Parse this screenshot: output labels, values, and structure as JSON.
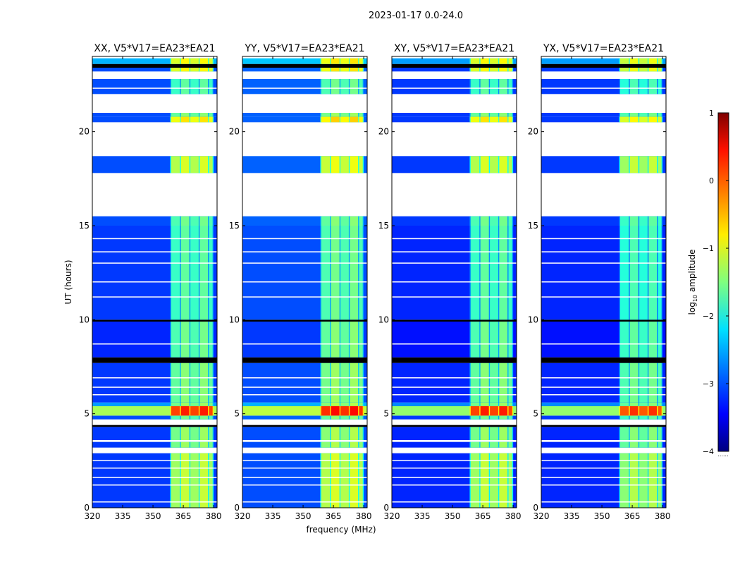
{
  "chart_data": {
    "type": "heatmap",
    "suptitle": "2023-01-17 0.0-24.0",
    "xlabel": "frequency (MHz)",
    "ylabel": "UT (hours)",
    "xlim": [
      320,
      381.7
    ],
    "ylim": [
      0,
      24
    ],
    "xticks": [
      "320",
      "335",
      "350",
      "365",
      "380"
    ],
    "xtick_values": [
      320,
      335,
      350,
      365,
      380
    ],
    "yticks": [
      "0",
      "5",
      "10",
      "15",
      "20"
    ],
    "ytick_values": [
      0,
      5,
      10,
      15,
      20
    ],
    "panels": [
      {
        "title": "XX, V5*V17=EA23*EA21",
        "bg_offset": 0.0,
        "hi_offset": 0.0
      },
      {
        "title": "YY, V5*V17=EA23*EA21",
        "bg_offset": 0.1,
        "hi_offset": 0.1
      },
      {
        "title": "XY, V5*V17=EA23*EA21",
        "bg_offset": -0.1,
        "hi_offset": 0.0
      },
      {
        "title": "YX, V5*V17=EA23*EA21",
        "bg_offset": -0.1,
        "hi_offset": -0.1
      }
    ],
    "rfi_channels_mhz": [
      [
        359,
        363.3
      ],
      [
        363.8,
        368
      ],
      [
        368.5,
        372.6
      ],
      [
        373.1,
        377.2
      ],
      [
        377.7,
        379.5
      ]
    ],
    "time_bands": [
      {
        "t0": 0.0,
        "t1": 2.9,
        "bg": -3.1,
        "hi": -1.3
      },
      {
        "t0": 2.9,
        "t1": 3.2,
        "bg": null,
        "hi": null
      },
      {
        "t0": 3.2,
        "t1": 3.5,
        "bg": -3.1,
        "hi": -1.5
      },
      {
        "t0": 3.5,
        "t1": 3.6,
        "bg": null,
        "hi": null
      },
      {
        "t0": 3.6,
        "t1": 4.3,
        "bg": -3.1,
        "hi": -1.5
      },
      {
        "t0": 4.3,
        "t1": 4.4,
        "bg": "black",
        "hi": "black"
      },
      {
        "t0": 4.4,
        "t1": 4.7,
        "bg": null,
        "hi": null
      },
      {
        "t0": 4.7,
        "t1": 4.9,
        "bg": -3.0,
        "hi": -1.7
      },
      {
        "t0": 4.9,
        "t1": 5.4,
        "bg": -1.3,
        "hi": 0.1
      },
      {
        "t0": 5.4,
        "t1": 5.6,
        "bg": -2.6,
        "hi": -1.5
      },
      {
        "t0": 5.6,
        "t1": 7.7,
        "bg": -3.1,
        "hi": -1.6
      },
      {
        "t0": 7.7,
        "t1": 8.0,
        "bg": "black",
        "hi": "black"
      },
      {
        "t0": 8.0,
        "t1": 9.9,
        "bg": -3.2,
        "hi": -1.7
      },
      {
        "t0": 9.9,
        "t1": 10.0,
        "bg": "black",
        "hi": "black"
      },
      {
        "t0": 10.0,
        "t1": 15.0,
        "bg": -3.1,
        "hi": -1.8
      },
      {
        "t0": 15.0,
        "t1": 15.5,
        "bg": -3.0,
        "hi": -1.7
      },
      {
        "t0": 15.5,
        "t1": 17.8,
        "bg": null,
        "hi": null
      },
      {
        "t0": 17.8,
        "t1": 18.7,
        "bg": -3.0,
        "hi": -1.2
      },
      {
        "t0": 18.7,
        "t1": 20.5,
        "bg": null,
        "hi": null
      },
      {
        "t0": 20.5,
        "t1": 20.8,
        "bg": -3.0,
        "hi": -0.9
      },
      {
        "t0": 20.8,
        "t1": 21.0,
        "bg": -3.0,
        "hi": -1.6
      },
      {
        "t0": 21.0,
        "t1": 22.0,
        "bg": null,
        "hi": null
      },
      {
        "t0": 22.0,
        "t1": 22.8,
        "bg": -3.0,
        "hi": -1.8
      },
      {
        "t0": 22.8,
        "t1": 23.2,
        "bg": null,
        "hi": null
      },
      {
        "t0": 23.2,
        "t1": 23.4,
        "bg": -3.0,
        "hi": -1.0
      },
      {
        "t0": 23.4,
        "t1": 23.6,
        "bg": "black",
        "hi": "black"
      },
      {
        "t0": 23.6,
        "t1": 23.9,
        "bg": -2.5,
        "hi": -1.0
      }
    ],
    "flag_lines_hours": [
      0.3,
      1.2,
      1.6,
      2.1,
      2.5,
      6.0,
      6.4,
      6.9,
      8.7,
      11.2,
      12.0,
      13.0,
      13.6,
      14.3,
      22.3,
      23.0
    ],
    "colorbar": {
      "label": "log10 amplitude",
      "label_main": "log",
      "label_sub": "10",
      "label_rest": " amplitude",
      "range": [
        -4,
        1
      ],
      "ticks": [
        "1",
        "0",
        "−1",
        "−2",
        "−3",
        "−4"
      ],
      "tick_values": [
        1,
        0,
        -1,
        -2,
        -3,
        -4
      ],
      "colormap": "jet"
    }
  }
}
